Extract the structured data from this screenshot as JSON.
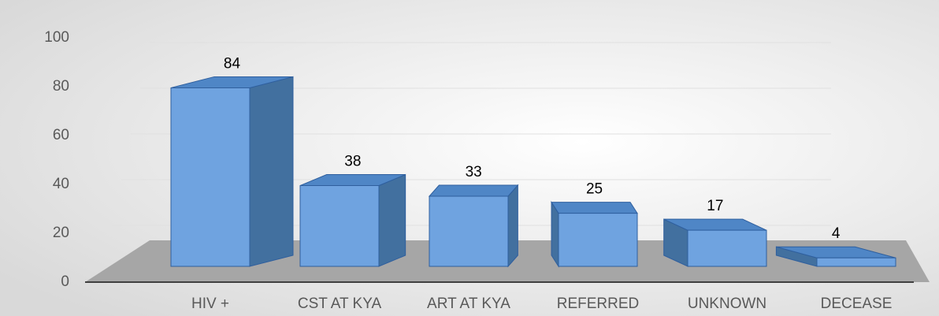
{
  "chart_data": {
    "type": "bar3d",
    "categories": [
      "HIV +",
      "CST AT KYA",
      "ART AT KYA",
      "REFERRED",
      "UNKNOWN",
      "DECEASE"
    ],
    "values": [
      84,
      38,
      33,
      25,
      17,
      4
    ],
    "color": "#6fa3e0",
    "ylim": [
      0,
      100
    ],
    "yticks": [
      0,
      20,
      40,
      60,
      80,
      100
    ],
    "grid": true
  }
}
